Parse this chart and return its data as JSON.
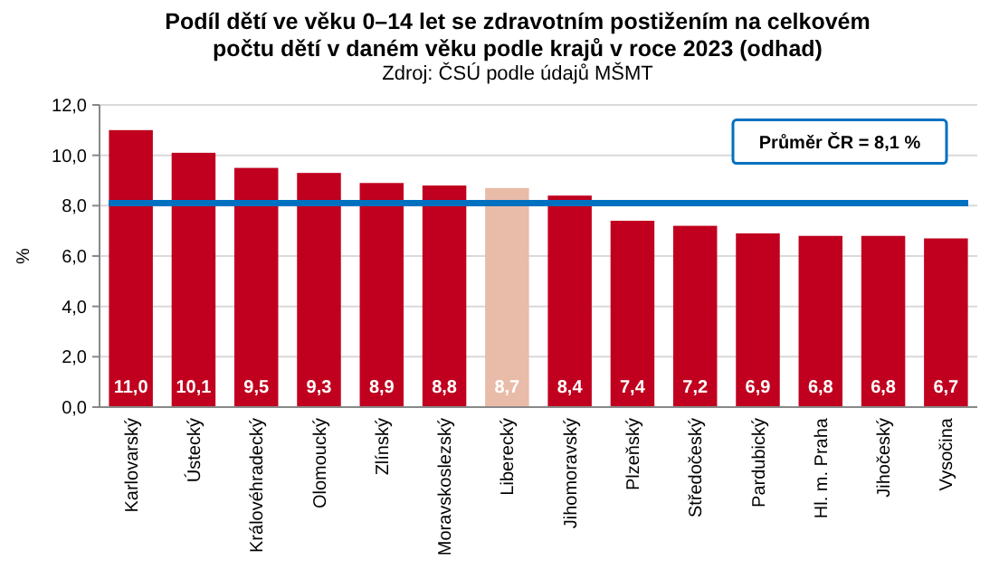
{
  "chart_data": {
    "type": "bar",
    "title": "Podíl dětí ve věku 0–14 let se zdravotním postižením na celkovém\npočtu dětí v daném věku podle krajů v roce 2023 (odhad)",
    "subtitle": "Zdroj: ČSÚ podle údajů MŠMT",
    "ylabel": "%",
    "categories": [
      "Karlovarský",
      "Ústecký",
      "Královéhradecký",
      "Olomoucký",
      "Zlínský",
      "Moravskoslezský",
      "Liberecký",
      "Jihomoravský",
      "Plzeňský",
      "Středočeský",
      "Pardubický",
      "Hl. m. Praha",
      "Jihočeský",
      "Vysočina"
    ],
    "values": [
      11.0,
      10.1,
      9.5,
      9.3,
      8.9,
      8.8,
      8.7,
      8.4,
      7.4,
      7.2,
      6.9,
      6.8,
      6.8,
      6.7
    ],
    "colors": [
      "#c0001e",
      "#c0001e",
      "#c0001e",
      "#c0001e",
      "#c0001e",
      "#c0001e",
      "#e9bba9",
      "#c0001e",
      "#c0001e",
      "#c0001e",
      "#c0001e",
      "#c0001e",
      "#c0001e",
      "#c0001e"
    ],
    "value_labels": [
      "11,0",
      "10,1",
      "9,5",
      "9,3",
      "8,9",
      "8,8",
      "8,7",
      "8,4",
      "7,4",
      "7,2",
      "6,9",
      "6,8",
      "6,8",
      "6,7"
    ],
    "ylim": [
      0,
      12
    ],
    "yticks": [
      {
        "value": 0,
        "label": "0,0"
      },
      {
        "value": 2,
        "label": "2,0"
      },
      {
        "value": 4,
        "label": "4,0"
      },
      {
        "value": 6,
        "label": "6,0"
      },
      {
        "value": 8,
        "label": "8,0"
      },
      {
        "value": 10,
        "label": "10,0"
      },
      {
        "value": 12,
        "label": "12,0"
      }
    ],
    "grid": "y",
    "ref_lines": [
      {
        "axis": "y",
        "value": 8.1,
        "label": "Průměr ČR = 8,1 %",
        "color": "#0070c0"
      }
    ]
  }
}
